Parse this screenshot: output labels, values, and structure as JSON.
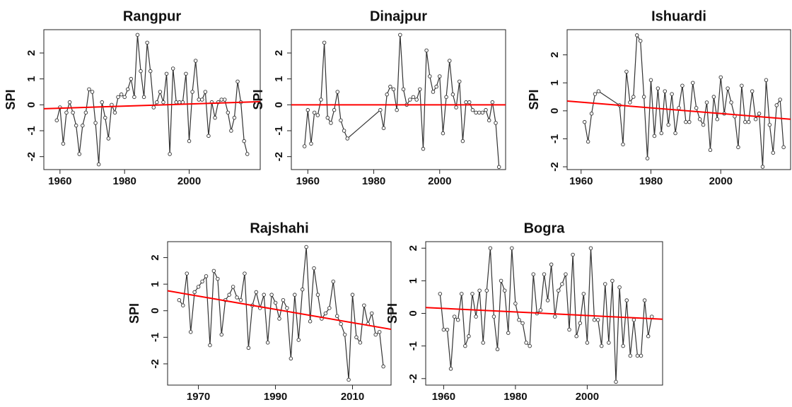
{
  "chart_data": [
    {
      "type": "line",
      "title": "Rangpur",
      "ylabel": "SPI",
      "x": [
        1959,
        1960,
        1961,
        1962,
        1963,
        1964,
        1965,
        1966,
        1967,
        1968,
        1969,
        1970,
        1971,
        1972,
        1973,
        1974,
        1975,
        1976,
        1977,
        1978,
        1979,
        1980,
        1981,
        1982,
        1983,
        1984,
        1985,
        1986,
        1987,
        1988,
        1989,
        1990,
        1991,
        1992,
        1993,
        1994,
        1995,
        1996,
        1997,
        1998,
        1999,
        2000,
        2001,
        2002,
        2003,
        2004,
        2005,
        2006,
        2007,
        2008,
        2009,
        2010,
        2011,
        2012,
        2013,
        2014,
        2015,
        2016,
        2017,
        2018
      ],
      "series": [
        {
          "color": "#333333",
          "values": [
            -0.6,
            -0.1,
            -1.5,
            -0.3,
            0.1,
            -0.3,
            -0.8,
            -1.9,
            -0.8,
            -0.3,
            0.6,
            0.5,
            -0.7,
            -2.3,
            0.1,
            -0.5,
            -1.3,
            0,
            -0.3,
            0.3,
            0.4,
            0.3,
            0.6,
            1.0,
            0.3,
            2.7,
            1.3,
            0.3,
            2.4,
            1.3,
            -0.1,
            0.1,
            0.5,
            0.1,
            1.2,
            -1.9,
            1.4,
            0.1,
            0.1,
            0.1,
            1.2,
            -1.4,
            0.5,
            1.7,
            0.2,
            0.2,
            0.5,
            -1.2,
            0.1,
            -0.5,
            0.1,
            0.2,
            0.2,
            -0.3,
            -1.0,
            -0.5,
            0.9,
            0.1,
            -1.4,
            -1.9
          ]
        }
      ],
      "trend": {
        "color": "#ff0000",
        "x": [
          1955,
          2022
        ],
        "values": [
          -0.15,
          0.12
        ]
      },
      "xlim": [
        1955,
        2022
      ],
      "xticks": [
        1960,
        1980,
        2000
      ],
      "ylim": [
        -2.5,
        2.9
      ],
      "yticks": [
        -2,
        -1,
        0,
        1,
        2
      ]
    },
    {
      "type": "line",
      "title": "Dinajpur",
      "ylabel": "SPI",
      "x": [
        1959,
        1960,
        1961,
        1962,
        1963,
        1964,
        1965,
        1966,
        1967,
        1968,
        1969,
        1970,
        1971,
        1972,
        1982,
        1983,
        1984,
        1985,
        1986,
        1987,
        1988,
        1989,
        1990,
        1991,
        1992,
        1993,
        1994,
        1995,
        1996,
        1997,
        1998,
        1999,
        2000,
        2001,
        2002,
        2003,
        2004,
        2005,
        2006,
        2007,
        2008,
        2009,
        2010,
        2011,
        2012,
        2013,
        2014,
        2015,
        2016,
        2017,
        2018
      ],
      "series": [
        {
          "color": "#333333",
          "values": [
            -1.6,
            -0.2,
            -1.5,
            -0.3,
            -0.4,
            0.2,
            2.4,
            -0.5,
            -0.7,
            -0.2,
            0.5,
            -0.6,
            -1.0,
            -1.3,
            -0.2,
            -0.9,
            0.4,
            0.7,
            0.6,
            -0.2,
            2.7,
            0.6,
            0.0,
            0.2,
            0.3,
            0.2,
            0.6,
            -1.7,
            2.1,
            1.1,
            0.5,
            0.7,
            1.1,
            -1.1,
            0.3,
            1.7,
            0.4,
            -0.1,
            0.9,
            -1.4,
            0.1,
            0.1,
            -0.2,
            -0.3,
            -0.3,
            -0.3,
            -0.2,
            -0.6,
            0.1,
            -0.7,
            -2.4
          ]
        }
      ],
      "trend": {
        "color": "#ff0000",
        "x": [
          1955,
          2020
        ],
        "values": [
          0,
          0
        ]
      },
      "xlim": [
        1955,
        2020
      ],
      "xticks": [
        1960,
        1980,
        2000
      ],
      "ylim": [
        -2.5,
        2.9
      ],
      "yticks": [
        -2,
        -1,
        0,
        1,
        2
      ]
    },
    {
      "type": "line",
      "title": "Ishuardi",
      "ylabel": "SPI",
      "x": [
        1961,
        1962,
        1963,
        1964,
        1965,
        1971,
        1972,
        1973,
        1974,
        1975,
        1976,
        1977,
        1978,
        1979,
        1980,
        1981,
        1982,
        1983,
        1984,
        1985,
        1986,
        1987,
        1988,
        1989,
        1990,
        1991,
        1992,
        1993,
        1994,
        1995,
        1996,
        1997,
        1998,
        1999,
        2000,
        2001,
        2002,
        2003,
        2004,
        2005,
        2006,
        2007,
        2008,
        2009,
        2010,
        2011,
        2012,
        2013,
        2014,
        2015,
        2016,
        2017,
        2018
      ],
      "series": [
        {
          "color": "#333333",
          "values": [
            -0.4,
            -1.1,
            -0.1,
            0.6,
            0.7,
            0.2,
            -1.2,
            1.4,
            0.3,
            0.5,
            2.7,
            2.5,
            0.5,
            -1.7,
            1.1,
            -0.9,
            0.8,
            -0.8,
            0.7,
            -0.5,
            0.6,
            -0.8,
            0.1,
            0.9,
            -0.4,
            -0.4,
            1.0,
            0.1,
            -0.3,
            -0.5,
            0.3,
            -1.4,
            0.5,
            -0.3,
            1.2,
            -0.1,
            0.8,
            0.3,
            -0.2,
            -1.3,
            0.9,
            -0.4,
            -0.4,
            0.7,
            -0.3,
            -0.1,
            -2.0,
            1.1,
            -0.5,
            -1.5,
            0.2,
            0.4,
            -1.3
          ]
        }
      ],
      "trend": {
        "color": "#ff0000",
        "x": [
          1956,
          2020
        ],
        "values": [
          0.35,
          -0.3
        ]
      },
      "xlim": [
        1956,
        2020
      ],
      "xticks": [
        1960,
        1980,
        2000
      ],
      "ylim": [
        -2.1,
        2.9
      ],
      "yticks": [
        -2,
        -1,
        0,
        1,
        2
      ]
    },
    {
      "type": "line",
      "title": "Rajshahi",
      "ylabel": "SPI",
      "x": [
        1965,
        1966,
        1967,
        1968,
        1969,
        1970,
        1971,
        1972,
        1973,
        1974,
        1975,
        1976,
        1977,
        1978,
        1979,
        1980,
        1981,
        1982,
        1983,
        1984,
        1985,
        1986,
        1987,
        1988,
        1989,
        1990,
        1991,
        1992,
        1993,
        1994,
        1995,
        1996,
        1997,
        1998,
        1999,
        2000,
        2001,
        2002,
        2003,
        2004,
        2005,
        2006,
        2007,
        2008,
        2009,
        2010,
        2011,
        2012,
        2013,
        2014,
        2015,
        2016,
        2017,
        2018
      ],
      "series": [
        {
          "color": "#333333",
          "values": [
            0.4,
            0.2,
            1.4,
            -0.8,
            0.7,
            0.9,
            1.1,
            1.3,
            -1.3,
            1.5,
            1.2,
            -0.9,
            0.4,
            0.6,
            0.9,
            0.5,
            0.4,
            1.4,
            -1.4,
            0.2,
            0.7,
            0.1,
            0.6,
            -1.2,
            0.6,
            0.3,
            -0.3,
            0.4,
            0.1,
            -1.8,
            0.6,
            -1.1,
            0.8,
            2.4,
            -0.4,
            1.6,
            0.6,
            -0.3,
            -0.1,
            0.1,
            1.1,
            -0.2,
            -0.5,
            -0.9,
            -2.6,
            0.6,
            -1.0,
            -1.2,
            0.2,
            -0.5,
            -0.1,
            -0.9,
            -0.8,
            -2.1
          ]
        }
      ],
      "trend": {
        "color": "#ff0000",
        "x": [
          1962,
          2020
        ],
        "values": [
          0.75,
          -0.7
        ]
      },
      "xlim": [
        1962,
        2020
      ],
      "xticks": [
        1970,
        1990,
        2010
      ],
      "ylim": [
        -2.8,
        2.6
      ],
      "yticks": [
        -2,
        -1,
        0,
        1,
        2
      ]
    },
    {
      "type": "line",
      "title": "Bogra",
      "ylabel": "SPI",
      "x": [
        1959,
        1960,
        1961,
        1962,
        1963,
        1964,
        1965,
        1966,
        1967,
        1968,
        1969,
        1970,
        1971,
        1972,
        1973,
        1974,
        1975,
        1976,
        1977,
        1978,
        1979,
        1980,
        1981,
        1982,
        1983,
        1984,
        1985,
        1986,
        1987,
        1988,
        1989,
        1990,
        1991,
        1992,
        1993,
        1994,
        1995,
        1996,
        1997,
        1998,
        1999,
        2000,
        2001,
        2002,
        2003,
        2004,
        2005,
        2006,
        2007,
        2008,
        2009,
        2010,
        2011,
        2012,
        2013,
        2014,
        2015,
        2016,
        2017,
        2018
      ],
      "series": [
        {
          "color": "#333333",
          "values": [
            0.6,
            -0.5,
            -0.5,
            -1.7,
            -0.1,
            -0.2,
            0.6,
            -1.0,
            -0.7,
            0.6,
            -0.1,
            0.7,
            -0.9,
            0.7,
            2.0,
            -0.1,
            -1.1,
            1.0,
            0.7,
            -0.6,
            2.0,
            0.3,
            -0.2,
            -0.3,
            -0.9,
            -1.0,
            1.2,
            0.0,
            0.1,
            1.2,
            0.4,
            1.5,
            -0.1,
            0.7,
            0.9,
            1.2,
            -0.5,
            1.8,
            -0.7,
            -0.3,
            0.6,
            -0.9,
            2.0,
            -0.2,
            -0.2,
            -1.0,
            0.9,
            -0.9,
            1.0,
            -2.1,
            0.8,
            -1.0,
            0.4,
            -1.3,
            -0.2,
            -1.3,
            -1.3,
            0.4,
            -0.7,
            -0.1
          ]
        }
      ],
      "trend": {
        "color": "#ff0000",
        "x": [
          1955,
          2021
        ],
        "values": [
          0.18,
          -0.18
        ]
      },
      "xlim": [
        1955,
        2021
      ],
      "xticks": [
        1960,
        1980,
        2000
      ],
      "ylim": [
        -2.2,
        2.2
      ],
      "yticks": [
        -2,
        -1,
        0,
        1,
        2
      ]
    }
  ]
}
